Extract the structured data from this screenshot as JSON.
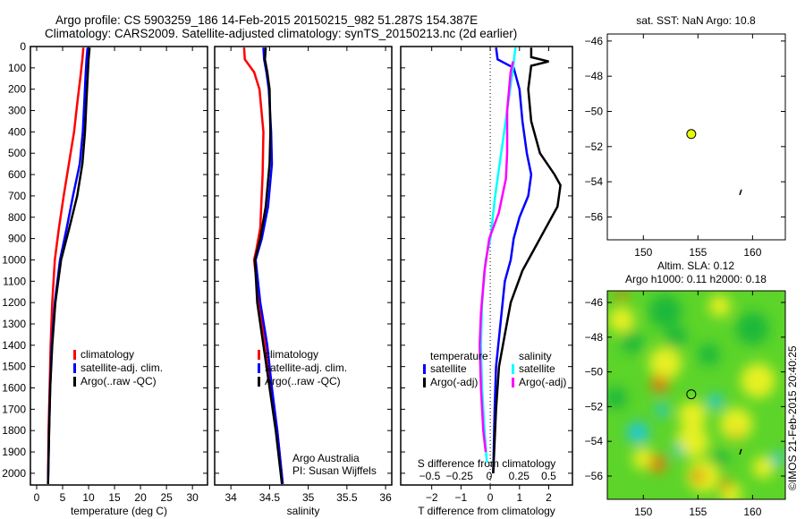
{
  "title": {
    "line1": "Argo profile: CS 5903259_186 14-Feb-2015 20150215_982 51.287S 154.387E",
    "line2": "Climatology: CARS2009. Satellite-adjusted climatology: synTS_20150213.nc (2d earlier)"
  },
  "colors": {
    "climatology": "#ff0000",
    "satellite": "#0000ff",
    "argo": "#000000",
    "sal_satellite": "#00ffff",
    "sal_argo": "#ff00ff"
  },
  "chart_data": [
    {
      "type": "line",
      "title": "",
      "xlabel": "temperature (deg C)",
      "ylabel": "",
      "xlim": [
        -1.2,
        32.9
      ],
      "ylim": [
        2055,
        0
      ],
      "xticks": [
        "0",
        "5",
        "10",
        "15",
        "20",
        "25",
        "30"
      ],
      "yticks": [
        "0",
        "100",
        "200",
        "300",
        "400",
        "500",
        "600",
        "700",
        "800",
        "900",
        "1000",
        "1100",
        "1200",
        "1300",
        "1400",
        "1500",
        "1600",
        "1700",
        "1800",
        "1900",
        "2000"
      ],
      "legend": [
        "climatology",
        "satellite-adj. clim.",
        "Argo(..raw -QC)"
      ],
      "series": [
        {
          "name": "climatology",
          "color": "#ff0000",
          "points": [
            [
              9.0,
              5
            ],
            [
              8.8,
              60
            ],
            [
              8.4,
              150
            ],
            [
              7.9,
              250
            ],
            [
              7.2,
              400
            ],
            [
              6.2,
              550
            ],
            [
              5.2,
              700
            ],
            [
              4.3,
              850
            ],
            [
              3.5,
              1000
            ],
            [
              3.0,
              1200
            ],
            [
              2.7,
              1400
            ],
            [
              2.5,
              1600
            ],
            [
              2.3,
              1800
            ],
            [
              2.2,
              2050
            ]
          ]
        },
        {
          "name": "satellite-adj. clim.",
          "color": "#0000ff",
          "points": [
            [
              9.8,
              5
            ],
            [
              9.6,
              60
            ],
            [
              9.4,
              150
            ],
            [
              9.2,
              250
            ],
            [
              8.9,
              400
            ],
            [
              8.3,
              550
            ],
            [
              7.0,
              700
            ],
            [
              5.8,
              850
            ],
            [
              4.5,
              1000
            ],
            [
              3.5,
              1200
            ],
            [
              2.9,
              1400
            ],
            [
              2.6,
              1600
            ],
            [
              2.4,
              1800
            ],
            [
              2.2,
              2050
            ]
          ]
        },
        {
          "name": "Argo(..raw -QC)",
          "color": "#000000",
          "points": [
            [
              10.2,
              5
            ],
            [
              10.0,
              60
            ],
            [
              9.8,
              150
            ],
            [
              9.6,
              250
            ],
            [
              9.3,
              400
            ],
            [
              8.8,
              550
            ],
            [
              7.8,
              700
            ],
            [
              6.3,
              850
            ],
            [
              4.7,
              1000
            ],
            [
              3.6,
              1200
            ],
            [
              3.0,
              1400
            ],
            [
              2.6,
              1600
            ],
            [
              2.4,
              1800
            ],
            [
              2.2,
              2050
            ]
          ]
        }
      ]
    },
    {
      "type": "line",
      "xlabel": "salinity",
      "xlim": [
        33.79,
        36.08
      ],
      "ylim": [
        2055,
        0
      ],
      "xticks": [
        "34",
        "34.5",
        "35",
        "35.5",
        "36"
      ],
      "legend": [
        "climatology",
        "satellite-adj. clim.",
        "Argo(..raw -QC)"
      ],
      "annotation": [
        "Argo Australia",
        "PI: Susan Wijffels"
      ],
      "series": [
        {
          "name": "climatology",
          "color": "#ff0000",
          "points": [
            [
              34.17,
              5
            ],
            [
              34.18,
              60
            ],
            [
              34.3,
              120
            ],
            [
              34.37,
              200
            ],
            [
              34.42,
              400
            ],
            [
              34.41,
              600
            ],
            [
              34.38,
              850
            ],
            [
              34.33,
              950
            ],
            [
              34.3,
              1000
            ],
            [
              34.36,
              1200
            ],
            [
              34.45,
              1400
            ],
            [
              34.52,
              1600
            ],
            [
              34.6,
              1800
            ],
            [
              34.67,
              2050
            ]
          ]
        },
        {
          "name": "satellite-adj. clim.",
          "color": "#0000ff",
          "points": [
            [
              34.42,
              5
            ],
            [
              34.43,
              60
            ],
            [
              34.46,
              120
            ],
            [
              34.49,
              200
            ],
            [
              34.52,
              400
            ],
            [
              34.53,
              550
            ],
            [
              34.48,
              750
            ],
            [
              34.4,
              900
            ],
            [
              34.32,
              1000
            ],
            [
              34.38,
              1200
            ],
            [
              34.47,
              1400
            ],
            [
              34.53,
              1600
            ],
            [
              34.6,
              1800
            ],
            [
              34.67,
              2050
            ]
          ]
        },
        {
          "name": "Argo(..raw -QC)",
          "color": "#000000",
          "points": [
            [
              34.45,
              5
            ],
            [
              34.44,
              60
            ],
            [
              34.47,
              120
            ],
            [
              34.5,
              200
            ],
            [
              34.51,
              400
            ],
            [
              34.5,
              550
            ],
            [
              34.45,
              750
            ],
            [
              34.38,
              900
            ],
            [
              34.31,
              1000
            ],
            [
              34.34,
              1200
            ],
            [
              34.42,
              1400
            ],
            [
              34.5,
              1600
            ],
            [
              34.58,
              1800
            ],
            [
              34.66,
              2050
            ]
          ]
        }
      ]
    },
    {
      "type": "line",
      "xlabel": "T difference from climatology",
      "xlabel_top": "S difference from climatology",
      "xlim": [
        -3.06,
        2.81
      ],
      "xlim_top": [
        -0.744,
        0.699
      ],
      "xticks": [
        "-2",
        "-1",
        "0",
        "1",
        "2"
      ],
      "xticks_top": [
        "-0.5",
        "-0.25",
        "0",
        "0.25",
        "0.5"
      ],
      "legend_titles": [
        "temperature",
        "salinity"
      ],
      "legend": [
        "satellite",
        "Argo(-adj)",
        "satellite",
        "Argo(-adj)"
      ],
      "series": [
        {
          "name": "temperature satellite",
          "axis": "T",
          "color": "#0000ff",
          "points": [
            [
              0.2,
              5
            ],
            [
              0.25,
              60
            ],
            [
              0.8,
              100
            ],
            [
              1.0,
              200
            ],
            [
              1.1,
              350
            ],
            [
              1.25,
              500
            ],
            [
              1.4,
              600
            ],
            [
              1.3,
              700
            ],
            [
              1.0,
              800
            ],
            [
              0.8,
              900
            ],
            [
              0.7,
              1000
            ],
            [
              0.5,
              1100
            ],
            [
              0.35,
              1300
            ],
            [
              0.2,
              1500
            ],
            [
              0.15,
              1700
            ],
            [
              0.1,
              2000
            ]
          ]
        },
        {
          "name": "temperature Argo(-adj)",
          "axis": "T",
          "color": "#000000",
          "points": [
            [
              1.4,
              5
            ],
            [
              1.4,
              50
            ],
            [
              2.0,
              70
            ],
            [
              1.4,
              90
            ],
            [
              1.3,
              200
            ],
            [
              1.4,
              350
            ],
            [
              1.7,
              500
            ],
            [
              2.2,
              600
            ],
            [
              2.4,
              650
            ],
            [
              2.3,
              750
            ],
            [
              1.9,
              850
            ],
            [
              1.5,
              950
            ],
            [
              1.1,
              1050
            ],
            [
              0.7,
              1200
            ],
            [
              0.5,
              1350
            ],
            [
              0.3,
              1500
            ],
            [
              0.2,
              1700
            ],
            [
              0.1,
              2000
            ]
          ]
        },
        {
          "name": "salinity satellite",
          "axis": "S",
          "color": "#00ffff",
          "points": [
            [
              0.22,
              5
            ],
            [
              0.2,
              100
            ],
            [
              0.15,
              300
            ],
            [
              0.1,
              500
            ],
            [
              0.05,
              700
            ],
            [
              0.01,
              900
            ],
            [
              -0.03,
              1000
            ],
            [
              -0.06,
              1200
            ],
            [
              -0.07,
              1400
            ],
            [
              -0.06,
              1600
            ],
            [
              -0.04,
              1800
            ],
            [
              -0.02,
              1950
            ]
          ]
        },
        {
          "name": "salinity Argo(-adj)",
          "axis": "S",
          "color": "#ff00ff",
          "points": [
            [
              0.2,
              70
            ],
            [
              0.18,
              120
            ],
            [
              0.15,
              300
            ],
            [
              0.15,
              500
            ],
            [
              0.14,
              620
            ],
            [
              0.08,
              780
            ],
            [
              0.0,
              900
            ],
            [
              -0.04,
              1050
            ],
            [
              -0.07,
              1250
            ],
            [
              -0.08,
              1400
            ],
            [
              -0.07,
              1600
            ],
            [
              -0.05,
              1800
            ],
            [
              -0.03,
              1900
            ]
          ]
        }
      ]
    },
    {
      "type": "scatter",
      "title": "sat. SST: NaN Argo: 10.8",
      "xlim": [
        146.7,
        163.0
      ],
      "ylim": [
        -57.3,
        -45.6
      ],
      "xticks": [
        "150",
        "155",
        "160"
      ],
      "yticks": [
        "-46",
        "-48",
        "-50",
        "-52",
        "-54",
        "-56"
      ],
      "points": [
        {
          "name": "argo-position",
          "lon": 154.387,
          "lat": -51.287
        },
        {
          "name": "track",
          "lon": 158.9,
          "lat": -54.6
        }
      ]
    },
    {
      "type": "heatmap",
      "title": "Altim. SLA: 0.12",
      "subtitle": "Argo h1000: 0.11 h2000: 0.18",
      "xlim": [
        146.7,
        163.0
      ],
      "ylim": [
        -57.34,
        -45.33
      ],
      "xticks": [
        "150",
        "155",
        "160"
      ],
      "yticks": [
        "-46",
        "-48",
        "-50",
        "-52",
        "-54",
        "-56"
      ],
      "argo": {
        "lon": 154.387,
        "lat": -51.287
      },
      "sla_features": [
        {
          "lon": 148,
          "lat": -47,
          "r": 1.2,
          "v": 0.1
        },
        {
          "lon": 152,
          "lat": -49.5,
          "r": 1.5,
          "v": 0.1
        },
        {
          "lon": 154.5,
          "lat": -52.5,
          "r": 1.3,
          "v": 0.1
        },
        {
          "lon": 154.5,
          "lat": -54,
          "r": 1.5,
          "v": 0.1
        },
        {
          "lon": 160.5,
          "lat": -50.5,
          "r": 1.6,
          "v": 0.1
        },
        {
          "lon": 158.5,
          "lat": -53,
          "r": 1.5,
          "v": 0.1
        },
        {
          "lon": 157,
          "lat": -46.2,
          "r": 1,
          "v": 0.1
        },
        {
          "lon": 161,
          "lat": -55.5,
          "r": 1,
          "v": 0.1
        },
        {
          "lon": 150,
          "lat": -55,
          "r": 1,
          "v": 0.1
        },
        {
          "lon": 155.5,
          "lat": -56,
          "r": 1.5,
          "v": 0.1
        },
        {
          "lon": 158,
          "lat": -57,
          "r": 1,
          "v": 0.1
        },
        {
          "lon": 151.5,
          "lat": -50.7,
          "r": 0.8,
          "v": 0.3
        },
        {
          "lon": 151.3,
          "lat": -55.3,
          "r": 0.8,
          "v": 0.3
        },
        {
          "lon": 155,
          "lat": -56,
          "r": 0.6,
          "v": 0.3
        },
        {
          "lon": 157.5,
          "lat": -56.5,
          "r": 0.5,
          "v": 0.3
        },
        {
          "lon": 148,
          "lat": -45.6,
          "r": 0.5,
          "v": 0.3
        },
        {
          "lon": 158.5,
          "lat": -53.6,
          "r": 0.4,
          "v": 0.25
        },
        {
          "lon": 156.6,
          "lat": -51.7,
          "r": 0.7,
          "v": -0.3
        },
        {
          "lon": 149.5,
          "lat": -53.5,
          "r": 1.0,
          "v": -0.3
        },
        {
          "lon": 151.7,
          "lat": -52.2,
          "r": 0.6,
          "v": -0.3
        },
        {
          "lon": 153.2,
          "lat": -54.5,
          "r": 0.5,
          "v": -0.3
        },
        {
          "lon": 162.3,
          "lat": -55,
          "r": 0.6,
          "v": -0.3
        },
        {
          "lon": 149,
          "lat": -48.3,
          "r": 1,
          "v": -0.1
        },
        {
          "lon": 153,
          "lat": -48,
          "r": 1,
          "v": -0.1
        },
        {
          "lon": 160,
          "lat": -47.5,
          "r": 1.5,
          "v": -0.1
        },
        {
          "lon": 147.5,
          "lat": -51.5,
          "r": 1,
          "v": -0.1
        },
        {
          "lon": 156,
          "lat": -49,
          "r": 1,
          "v": -0.1
        },
        {
          "lon": 157,
          "lat": -55,
          "r": 0.8,
          "v": -0.1
        },
        {
          "lon": 152,
          "lat": -46.5,
          "r": 1.5,
          "v": -0.1
        }
      ]
    }
  ],
  "timestamp": "©IMOS 21-Feb-2015 20:40:25"
}
